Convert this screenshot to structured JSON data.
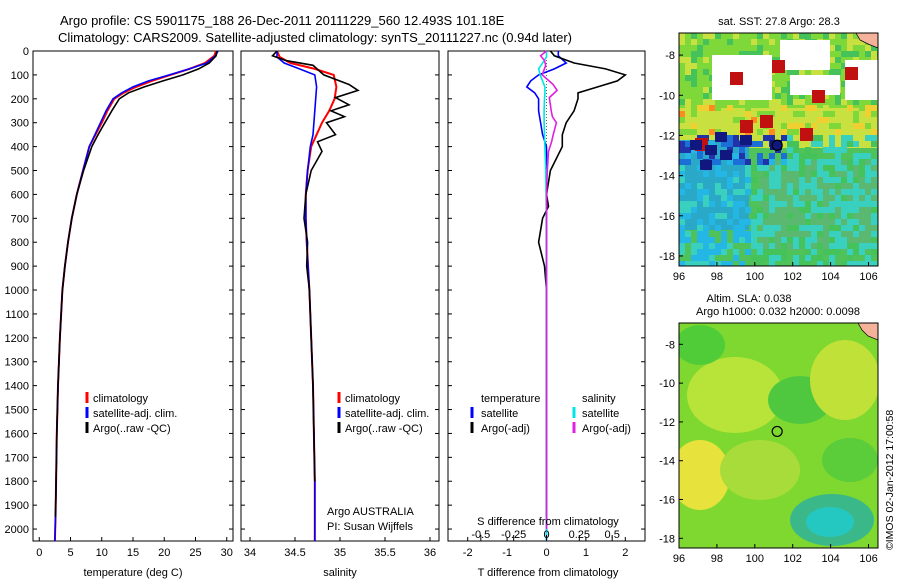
{
  "header": {
    "line1": "Argo profile: CS 5901175_188 26-Dec-2011 20111229_560 12.493S 101.18E",
    "line2": "Climatology: CARS2009. Satellite-adjusted climatology: synTS_20111227.nc (0.94d later)"
  },
  "colors": {
    "climatology": "#ff0000",
    "satellite": "#0000ff",
    "argo": "#000000",
    "sal_satellite": "#00e5e5",
    "sal_argo": "#e020e0"
  },
  "chart_data": [
    {
      "type": "line",
      "name": "temperature-profile",
      "xlabel": "temperature (deg C)",
      "ylabel": "",
      "xlim": [
        -1,
        31
      ],
      "ylim": [
        2050,
        0
      ],
      "xticks": [
        0,
        5,
        10,
        15,
        20,
        25,
        30
      ],
      "yticks": [
        0,
        100,
        200,
        300,
        400,
        500,
        600,
        700,
        800,
        900,
        1000,
        1100,
        1200,
        1300,
        1400,
        1500,
        1600,
        1700,
        1800,
        1900,
        2000
      ],
      "legend": [
        "climatology",
        "satellite-adj. clim.",
        "Argo(..raw -QC)"
      ],
      "series": [
        {
          "name": "climatology",
          "color": "#ff0000",
          "x": [
            28.3,
            28.0,
            26.5,
            24.0,
            21.0,
            18.0,
            15.5,
            13.5,
            12.0,
            10.9,
            10.0,
            9.0,
            8.0,
            7.0,
            6.0,
            5.2,
            4.6,
            4.1,
            3.7,
            3.3,
            3.0,
            2.8,
            2.7,
            2.6,
            2.5
          ],
          "y": [
            0,
            20,
            50,
            75,
            100,
            125,
            150,
            175,
            200,
            250,
            300,
            350,
            400,
            500,
            600,
            700,
            800,
            900,
            1000,
            1200,
            1400,
            1600,
            1800,
            1950,
            2050
          ]
        },
        {
          "name": "satellite",
          "color": "#0000ff",
          "x": [
            28.6,
            28.2,
            26.8,
            24.0,
            20.8,
            17.5,
            15.0,
            13.2,
            11.8,
            10.7,
            9.8,
            8.9,
            8.0,
            7.0,
            6.0,
            5.2,
            4.6,
            4.1,
            3.7,
            3.3,
            3.0,
            2.8,
            2.7,
            2.6,
            2.5
          ],
          "y": [
            0,
            20,
            50,
            75,
            100,
            125,
            150,
            175,
            200,
            250,
            300,
            350,
            400,
            500,
            600,
            700,
            800,
            900,
            1000,
            1200,
            1400,
            1600,
            1800,
            1950,
            2050
          ]
        },
        {
          "name": "argo",
          "color": "#000000",
          "x": [
            28.4,
            28.3,
            27.2,
            25.5,
            23.0,
            19.8,
            16.8,
            14.3,
            12.8,
            11.6,
            10.5,
            9.4,
            8.4,
            7.1,
            6.0,
            5.2,
            4.6,
            4.1,
            3.7,
            3.3,
            3.0,
            2.8,
            2.7,
            2.6
          ],
          "y": [
            0,
            20,
            50,
            75,
            100,
            125,
            150,
            175,
            200,
            250,
            300,
            350,
            400,
            500,
            600,
            700,
            800,
            900,
            1000,
            1200,
            1400,
            1600,
            1800,
            1950
          ]
        }
      ]
    },
    {
      "type": "line",
      "name": "salinity-profile",
      "xlabel": "salinity",
      "xlim": [
        33.9,
        36.1
      ],
      "ylim": [
        2050,
        0
      ],
      "xticks": [
        34,
        34.5,
        35,
        35.5,
        36
      ],
      "legend": [
        "climatology",
        "satellite-adj. clim.",
        "Argo(..raw -QC)"
      ],
      "annotation": [
        "Argo AUSTRALIA",
        "PI: Susan Wijffels"
      ],
      "series": [
        {
          "name": "climatology",
          "color": "#ff0000",
          "x": [
            34.3,
            34.33,
            34.45,
            34.72,
            34.93,
            34.96,
            34.94,
            34.88,
            34.8,
            34.74,
            34.68,
            34.64,
            34.62,
            34.62,
            34.63,
            34.66,
            34.68,
            34.7,
            34.71,
            34.72,
            34.72
          ],
          "y": [
            0,
            25,
            50,
            75,
            100,
            150,
            200,
            250,
            300,
            350,
            400,
            500,
            600,
            700,
            800,
            1000,
            1200,
            1400,
            1600,
            1800,
            2050
          ]
        },
        {
          "name": "satellite",
          "color": "#0000ff",
          "x": [
            34.3,
            34.3,
            34.38,
            34.55,
            34.72,
            34.74,
            34.73,
            34.72,
            34.71,
            34.7,
            34.67,
            34.64,
            34.62,
            34.62,
            34.63,
            34.66,
            34.68,
            34.7,
            34.71,
            34.72,
            34.72
          ],
          "y": [
            0,
            25,
            50,
            75,
            100,
            150,
            200,
            250,
            300,
            350,
            400,
            500,
            600,
            700,
            800,
            1000,
            1200,
            1400,
            1600,
            1800,
            2050
          ]
        },
        {
          "name": "argo",
          "color": "#000000",
          "x": [
            34.3,
            34.25,
            34.4,
            34.7,
            34.82,
            35.1,
            35.2,
            34.95,
            35.1,
            34.9,
            35.05,
            34.85,
            34.95,
            34.75,
            34.8,
            34.68,
            34.62,
            34.6,
            34.64,
            34.63,
            34.66,
            34.68,
            34.7,
            34.71,
            34.72
          ],
          "y": [
            0,
            20,
            40,
            60,
            100,
            140,
            165,
            195,
            225,
            250,
            275,
            300,
            350,
            380,
            420,
            500,
            600,
            700,
            800,
            900,
            1000,
            1200,
            1400,
            1600,
            1800
          ]
        }
      ]
    },
    {
      "type": "line",
      "name": "difference-profile",
      "xlabel": "T difference from climatology",
      "xlim": [
        -2.5,
        2.5
      ],
      "ylim": [
        2050,
        0
      ],
      "xticks": [
        -2,
        -1,
        0,
        1,
        2
      ],
      "secondary_axis": {
        "label": "S difference from climatology",
        "ticks": [
          "-0.5",
          "-0.25",
          "0",
          "0.25",
          "0.5"
        ]
      },
      "legend_left": {
        "title": "temperature",
        "items": [
          "satellite",
          "Argo(-adj)"
        ]
      },
      "legend_right": {
        "title": "salinity",
        "items": [
          "satellite",
          "Argo(-adj)"
        ]
      },
      "series": [
        {
          "name": "temperature satellite",
          "color": "#0000ff",
          "x": [
            0.3,
            0.3,
            0.5,
            0.2,
            -0.2,
            -0.4,
            -0.5,
            -0.3,
            -0.2,
            -0.2,
            -0.15,
            -0.1,
            0.0,
            0.0,
            0.0,
            0.0,
            0.0
          ],
          "y": [
            0,
            20,
            50,
            75,
            100,
            125,
            150,
            175,
            200,
            250,
            300,
            350,
            400,
            500,
            700,
            1000,
            2050
          ]
        },
        {
          "name": "temperature argo",
          "color": "#000000",
          "x": [
            0.1,
            0.2,
            0.7,
            1.5,
            2.0,
            1.8,
            1.3,
            0.8,
            0.8,
            0.7,
            0.5,
            0.4,
            0.4,
            0.1,
            0.0,
            0.05,
            -0.1,
            -0.2,
            -0.05,
            0.0,
            0.0,
            0.0,
            0.0,
            0.0
          ],
          "y": [
            0,
            20,
            50,
            75,
            100,
            125,
            150,
            175,
            200,
            250,
            300,
            350,
            400,
            500,
            600,
            650,
            700,
            800,
            900,
            1000,
            1200,
            1400,
            1600,
            1950
          ]
        },
        {
          "name": "salinity satellite",
          "color": "#00e5e5",
          "x": [
            0.0,
            0.0,
            -0.1,
            -0.2,
            -0.16,
            -0.04,
            -0.04,
            -0.05,
            -0.06,
            -0.06,
            -0.05,
            -0.04,
            -0.03,
            -0.02,
            -0.01,
            0.0,
            0.0,
            0.0
          ],
          "y": [
            0,
            25,
            50,
            75,
            100,
            150,
            180,
            200,
            250,
            300,
            350,
            400,
            450,
            500,
            600,
            700,
            1000,
            2050
          ]
        },
        {
          "name": "salinity argo",
          "color": "#e020e0",
          "x": [
            0.0,
            -0.15,
            -0.05,
            -0.02,
            -0.11,
            0.17,
            0.27,
            0.07,
            0.1,
            0.12,
            0.15,
            0.25,
            0.17,
            0.13,
            0.05,
            0.02,
            0.0,
            0.0,
            0.0
          ],
          "y": [
            0,
            20,
            40,
            60,
            100,
            140,
            165,
            195,
            225,
            250,
            275,
            300,
            350,
            380,
            420,
            500,
            600,
            1000,
            2000
          ]
        }
      ]
    },
    {
      "type": "heatmap",
      "name": "sst-map",
      "title": "sat. SST: 27.8 Argo: 28.3",
      "xlim": [
        96,
        106.5
      ],
      "ylim": [
        -18.5,
        -6.9
      ],
      "xticks": [
        96,
        98,
        100,
        102,
        104,
        106
      ],
      "yticks": [
        -8,
        -10,
        -12,
        -14,
        -16,
        -18
      ],
      "profile_location": {
        "lon": 101.18,
        "lat": -12.49
      }
    },
    {
      "type": "heatmap",
      "name": "sla-map",
      "title_lines": [
        "Altim. SLA: 0.038",
        "Argo h1000: 0.032 h2000: 0.0098"
      ],
      "xlim": [
        96,
        106.5
      ],
      "ylim": [
        -18.5,
        -6.9
      ],
      "xticks": [
        96,
        98,
        100,
        102,
        104,
        106
      ],
      "yticks": [
        -8,
        -10,
        -12,
        -14,
        -16,
        -18
      ],
      "profile_location": {
        "lon": 101.18,
        "lat": -12.49
      }
    }
  ],
  "credit": "©IMOS 02-Jan-2012 17:00:58"
}
